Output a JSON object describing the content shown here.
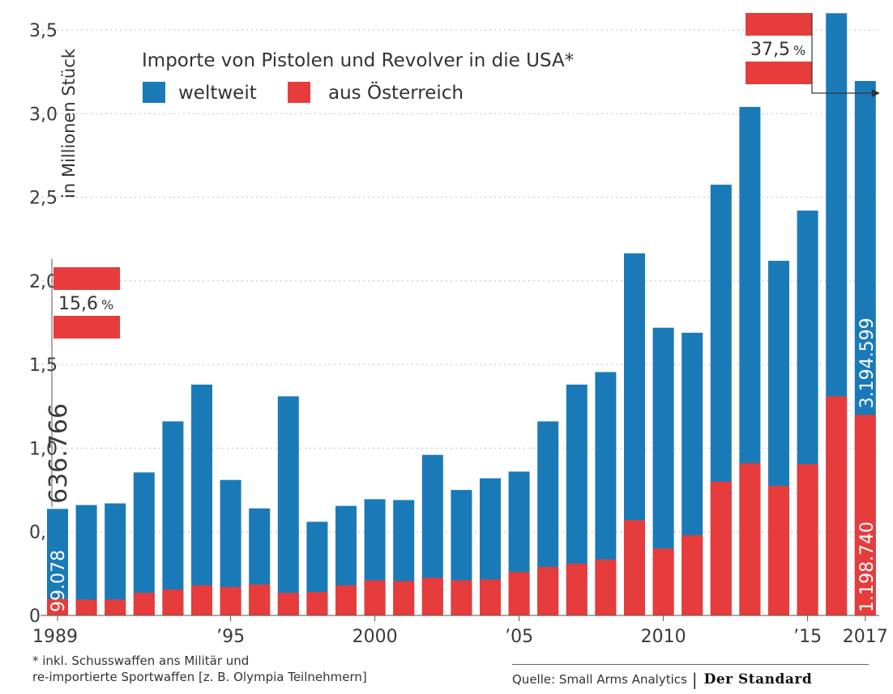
{
  "chart_data": {
    "type": "bar",
    "stacked": false,
    "ylabel": "in Millionen Stück",
    "legend_title": "Importe von Pistolen und Revolver in die USA*",
    "legend_placement": "top-left",
    "ylim": [
      0,
      3.5
    ],
    "yticks": [
      0,
      0.5,
      1.0,
      1.5,
      2.0,
      2.5,
      3.0,
      3.5
    ],
    "ytick_labels": [
      "0",
      "0,5",
      "1,0",
      "1,5",
      "2,0",
      "2,5",
      "3,0",
      "3,5"
    ],
    "grid": true,
    "years": [
      1989,
      1990,
      1991,
      1992,
      1993,
      1994,
      1995,
      1996,
      1997,
      1998,
      1999,
      2000,
      2001,
      2002,
      2003,
      2004,
      2005,
      2006,
      2007,
      2008,
      2009,
      2010,
      2011,
      2012,
      2013,
      2014,
      2015,
      2016,
      2017
    ],
    "xtick_labels": [
      {
        "year": 1989,
        "label": "1989"
      },
      {
        "year": 1995,
        "label": "’95"
      },
      {
        "year": 2000,
        "label": "2000"
      },
      {
        "year": 2005,
        "label": "’05"
      },
      {
        "year": 2010,
        "label": "2010"
      },
      {
        "year": 2015,
        "label": "’15"
      },
      {
        "year": 2017,
        "label": "2017"
      }
    ],
    "series": [
      {
        "name": "weltweit",
        "color": "#1a7ab8",
        "values": [
          0.637,
          0.66,
          0.67,
          0.855,
          1.16,
          1.38,
          0.81,
          0.64,
          1.31,
          0.56,
          0.655,
          0.695,
          0.69,
          0.96,
          0.75,
          0.82,
          0.86,
          1.16,
          1.38,
          1.455,
          2.165,
          1.72,
          1.69,
          2.575,
          3.04,
          2.12,
          2.42,
          3.6,
          3.195
        ]
      },
      {
        "name": "aus Österreich",
        "color": "#e63c3c",
        "values": [
          0.099,
          0.095,
          0.095,
          0.135,
          0.155,
          0.18,
          0.17,
          0.185,
          0.135,
          0.14,
          0.18,
          0.21,
          0.205,
          0.225,
          0.21,
          0.215,
          0.26,
          0.29,
          0.31,
          0.335,
          0.57,
          0.4,
          0.48,
          0.8,
          0.91,
          0.775,
          0.905,
          1.31,
          1.199
        ]
      }
    ],
    "annotations": {
      "first_total_label": "636.766",
      "first_austria_label": "99.078",
      "last_total_label": "3.194.599",
      "last_austria_label": "1.198.740",
      "share_1989": {
        "value": "15,6",
        "unit": "%"
      },
      "share_2017": {
        "value": "37,5",
        "unit": "%"
      }
    }
  },
  "footnote": {
    "line1": "* inkl. Schusswaffen ans Militär und",
    "line2": "re-importierte Sportwaffen [z. B. Olympia Teilnehmern]"
  },
  "source": {
    "text": "Quelle: Small Arms Analytics",
    "separator": "|",
    "brand": "Der Standard"
  }
}
